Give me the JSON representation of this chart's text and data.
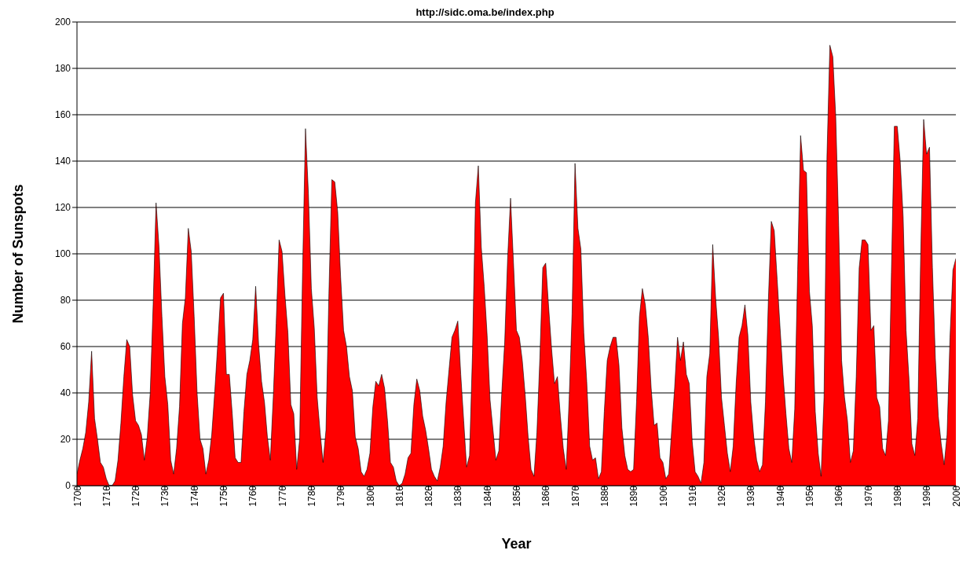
{
  "chart_data": {
    "type": "area",
    "title": "http://sidc.oma.be/index.php",
    "xlabel": "Year",
    "ylabel": "Number of Sunspots",
    "x": [
      1700,
      1701,
      1702,
      1703,
      1704,
      1705,
      1706,
      1707,
      1708,
      1709,
      1710,
      1711,
      1712,
      1713,
      1714,
      1715,
      1716,
      1717,
      1718,
      1719,
      1720,
      1721,
      1722,
      1723,
      1724,
      1725,
      1726,
      1727,
      1728,
      1729,
      1730,
      1731,
      1732,
      1733,
      1734,
      1735,
      1736,
      1737,
      1738,
      1739,
      1740,
      1741,
      1742,
      1743,
      1744,
      1745,
      1746,
      1747,
      1748,
      1749,
      1750,
      1751,
      1752,
      1753,
      1754,
      1755,
      1756,
      1757,
      1758,
      1759,
      1760,
      1761,
      1762,
      1763,
      1764,
      1765,
      1766,
      1767,
      1768,
      1769,
      1770,
      1771,
      1772,
      1773,
      1774,
      1775,
      1776,
      1777,
      1778,
      1779,
      1780,
      1781,
      1782,
      1783,
      1784,
      1785,
      1786,
      1787,
      1788,
      1789,
      1790,
      1791,
      1792,
      1793,
      1794,
      1795,
      1796,
      1797,
      1798,
      1799,
      1800,
      1801,
      1802,
      1803,
      1804,
      1805,
      1806,
      1807,
      1808,
      1809,
      1810,
      1811,
      1812,
      1813,
      1814,
      1815,
      1816,
      1817,
      1818,
      1819,
      1820,
      1821,
      1822,
      1823,
      1824,
      1825,
      1826,
      1827,
      1828,
      1829,
      1830,
      1831,
      1832,
      1833,
      1834,
      1835,
      1836,
      1837,
      1838,
      1839,
      1840,
      1841,
      1842,
      1843,
      1844,
      1845,
      1846,
      1847,
      1848,
      1849,
      1850,
      1851,
      1852,
      1853,
      1854,
      1855,
      1856,
      1857,
      1858,
      1859,
      1860,
      1861,
      1862,
      1863,
      1864,
      1865,
      1866,
      1867,
      1868,
      1869,
      1870,
      1871,
      1872,
      1873,
      1874,
      1875,
      1876,
      1877,
      1878,
      1879,
      1880,
      1881,
      1882,
      1883,
      1884,
      1885,
      1886,
      1887,
      1888,
      1889,
      1890,
      1891,
      1892,
      1893,
      1894,
      1895,
      1896,
      1897,
      1898,
      1899,
      1900,
      1901,
      1902,
      1903,
      1904,
      1905,
      1906,
      1907,
      1908,
      1909,
      1910,
      1911,
      1912,
      1913,
      1914,
      1915,
      1916,
      1917,
      1918,
      1919,
      1920,
      1921,
      1922,
      1923,
      1924,
      1925,
      1926,
      1927,
      1928,
      1929,
      1930,
      1931,
      1932,
      1933,
      1934,
      1935,
      1936,
      1937,
      1938,
      1939,
      1940,
      1941,
      1942,
      1943,
      1944,
      1945,
      1946,
      1947,
      1948,
      1949,
      1950,
      1951,
      1952,
      1953,
      1954,
      1955,
      1956,
      1957,
      1958,
      1959,
      1960,
      1961,
      1962,
      1963,
      1964,
      1965,
      1966,
      1967,
      1968,
      1969,
      1970,
      1971,
      1972,
      1973,
      1974,
      1975,
      1976,
      1977,
      1978,
      1979,
      1980,
      1981,
      1982,
      1983,
      1984,
      1985,
      1986,
      1987,
      1988,
      1989,
      1990,
      1991,
      1992,
      1993,
      1994,
      1995,
      1996,
      1997,
      1998,
      1999,
      2000
    ],
    "series": [
      {
        "color": "#ff0000",
        "values": [
          5,
          11,
          16,
          23,
          36,
          58,
          29,
          20,
          10,
          8,
          3,
          0,
          0,
          2,
          11,
          27,
          47,
          63,
          60,
          39,
          28,
          26,
          22,
          11,
          21,
          40,
          78,
          122,
          103,
          73,
          47,
          35,
          11,
          5,
          16,
          34,
          70,
          81,
          111,
          101,
          73,
          40,
          20,
          16,
          5,
          11,
          22,
          40,
          60,
          81,
          83,
          48,
          48,
          31,
          12,
          10,
          10,
          32,
          48,
          54,
          63,
          86,
          61,
          45,
          36,
          21,
          11,
          38,
          70,
          106,
          101,
          82,
          66,
          35,
          31,
          7,
          20,
          92,
          154,
          126,
          85,
          68,
          38,
          23,
          10,
          24,
          83,
          132,
          131,
          118,
          90,
          67,
          60,
          47,
          41,
          21,
          16,
          6,
          4,
          7,
          14,
          34,
          45,
          43,
          48,
          42,
          28,
          10,
          8,
          2,
          0,
          1,
          5,
          12,
          14,
          35,
          46,
          41,
          30,
          24,
          16,
          7,
          4,
          2,
          8,
          17,
          36,
          50,
          64,
          67,
          71,
          48,
          28,
          8,
          13,
          57,
          122,
          138,
          103,
          86,
          65,
          37,
          24,
          11,
          15,
          40,
          62,
          98,
          124,
          96,
          67,
          64,
          54,
          39,
          21,
          7,
          4,
          23,
          55,
          94,
          96,
          77,
          59,
          44,
          47,
          30,
          16,
          7,
          37,
          74,
          139,
          111,
          102,
          66,
          45,
          17,
          11,
          12,
          3,
          6,
          32,
          54,
          60,
          64,
          64,
          52,
          25,
          13,
          7,
          6,
          7,
          36,
          73,
          85,
          78,
          64,
          42,
          26,
          27,
          12,
          10,
          3,
          5,
          24,
          42,
          64,
          54,
          62,
          48,
          44,
          19,
          6,
          4,
          1,
          10,
          47,
          57,
          104,
          81,
          64,
          38,
          26,
          14,
          6,
          17,
          44,
          64,
          69,
          78,
          65,
          36,
          21,
          11,
          6,
          9,
          36,
          80,
          114,
          110,
          89,
          68,
          48,
          31,
          16,
          10,
          33,
          93,
          151,
          136,
          135,
          84,
          69,
          32,
          14,
          4,
          38,
          142,
          190,
          185,
          159,
          112,
          54,
          38,
          28,
          10,
          15,
          47,
          94,
          106,
          106,
          104,
          67,
          69,
          38,
          34,
          16,
          13,
          28,
          92,
          155,
          155,
          140,
          116,
          67,
          46,
          18,
          13,
          29,
          100,
          158,
          143,
          146,
          94,
          55,
          30,
          18,
          9,
          22,
          64,
          93,
          98
        ]
      }
    ],
    "xlim": [
      1700,
      2000
    ],
    "xticks": [
      1700,
      1710,
      1720,
      1730,
      1740,
      1750,
      1760,
      1770,
      1780,
      1790,
      1800,
      1810,
      1820,
      1830,
      1840,
      1850,
      1860,
      1870,
      1880,
      1890,
      1900,
      1910,
      1920,
      1930,
      1940,
      1950,
      1960,
      1970,
      1980,
      1990,
      2000
    ],
    "ylim": [
      0,
      200
    ],
    "yticks": [
      0,
      20,
      40,
      60,
      80,
      100,
      120,
      140,
      160,
      180,
      200
    ],
    "grid": "y"
  }
}
